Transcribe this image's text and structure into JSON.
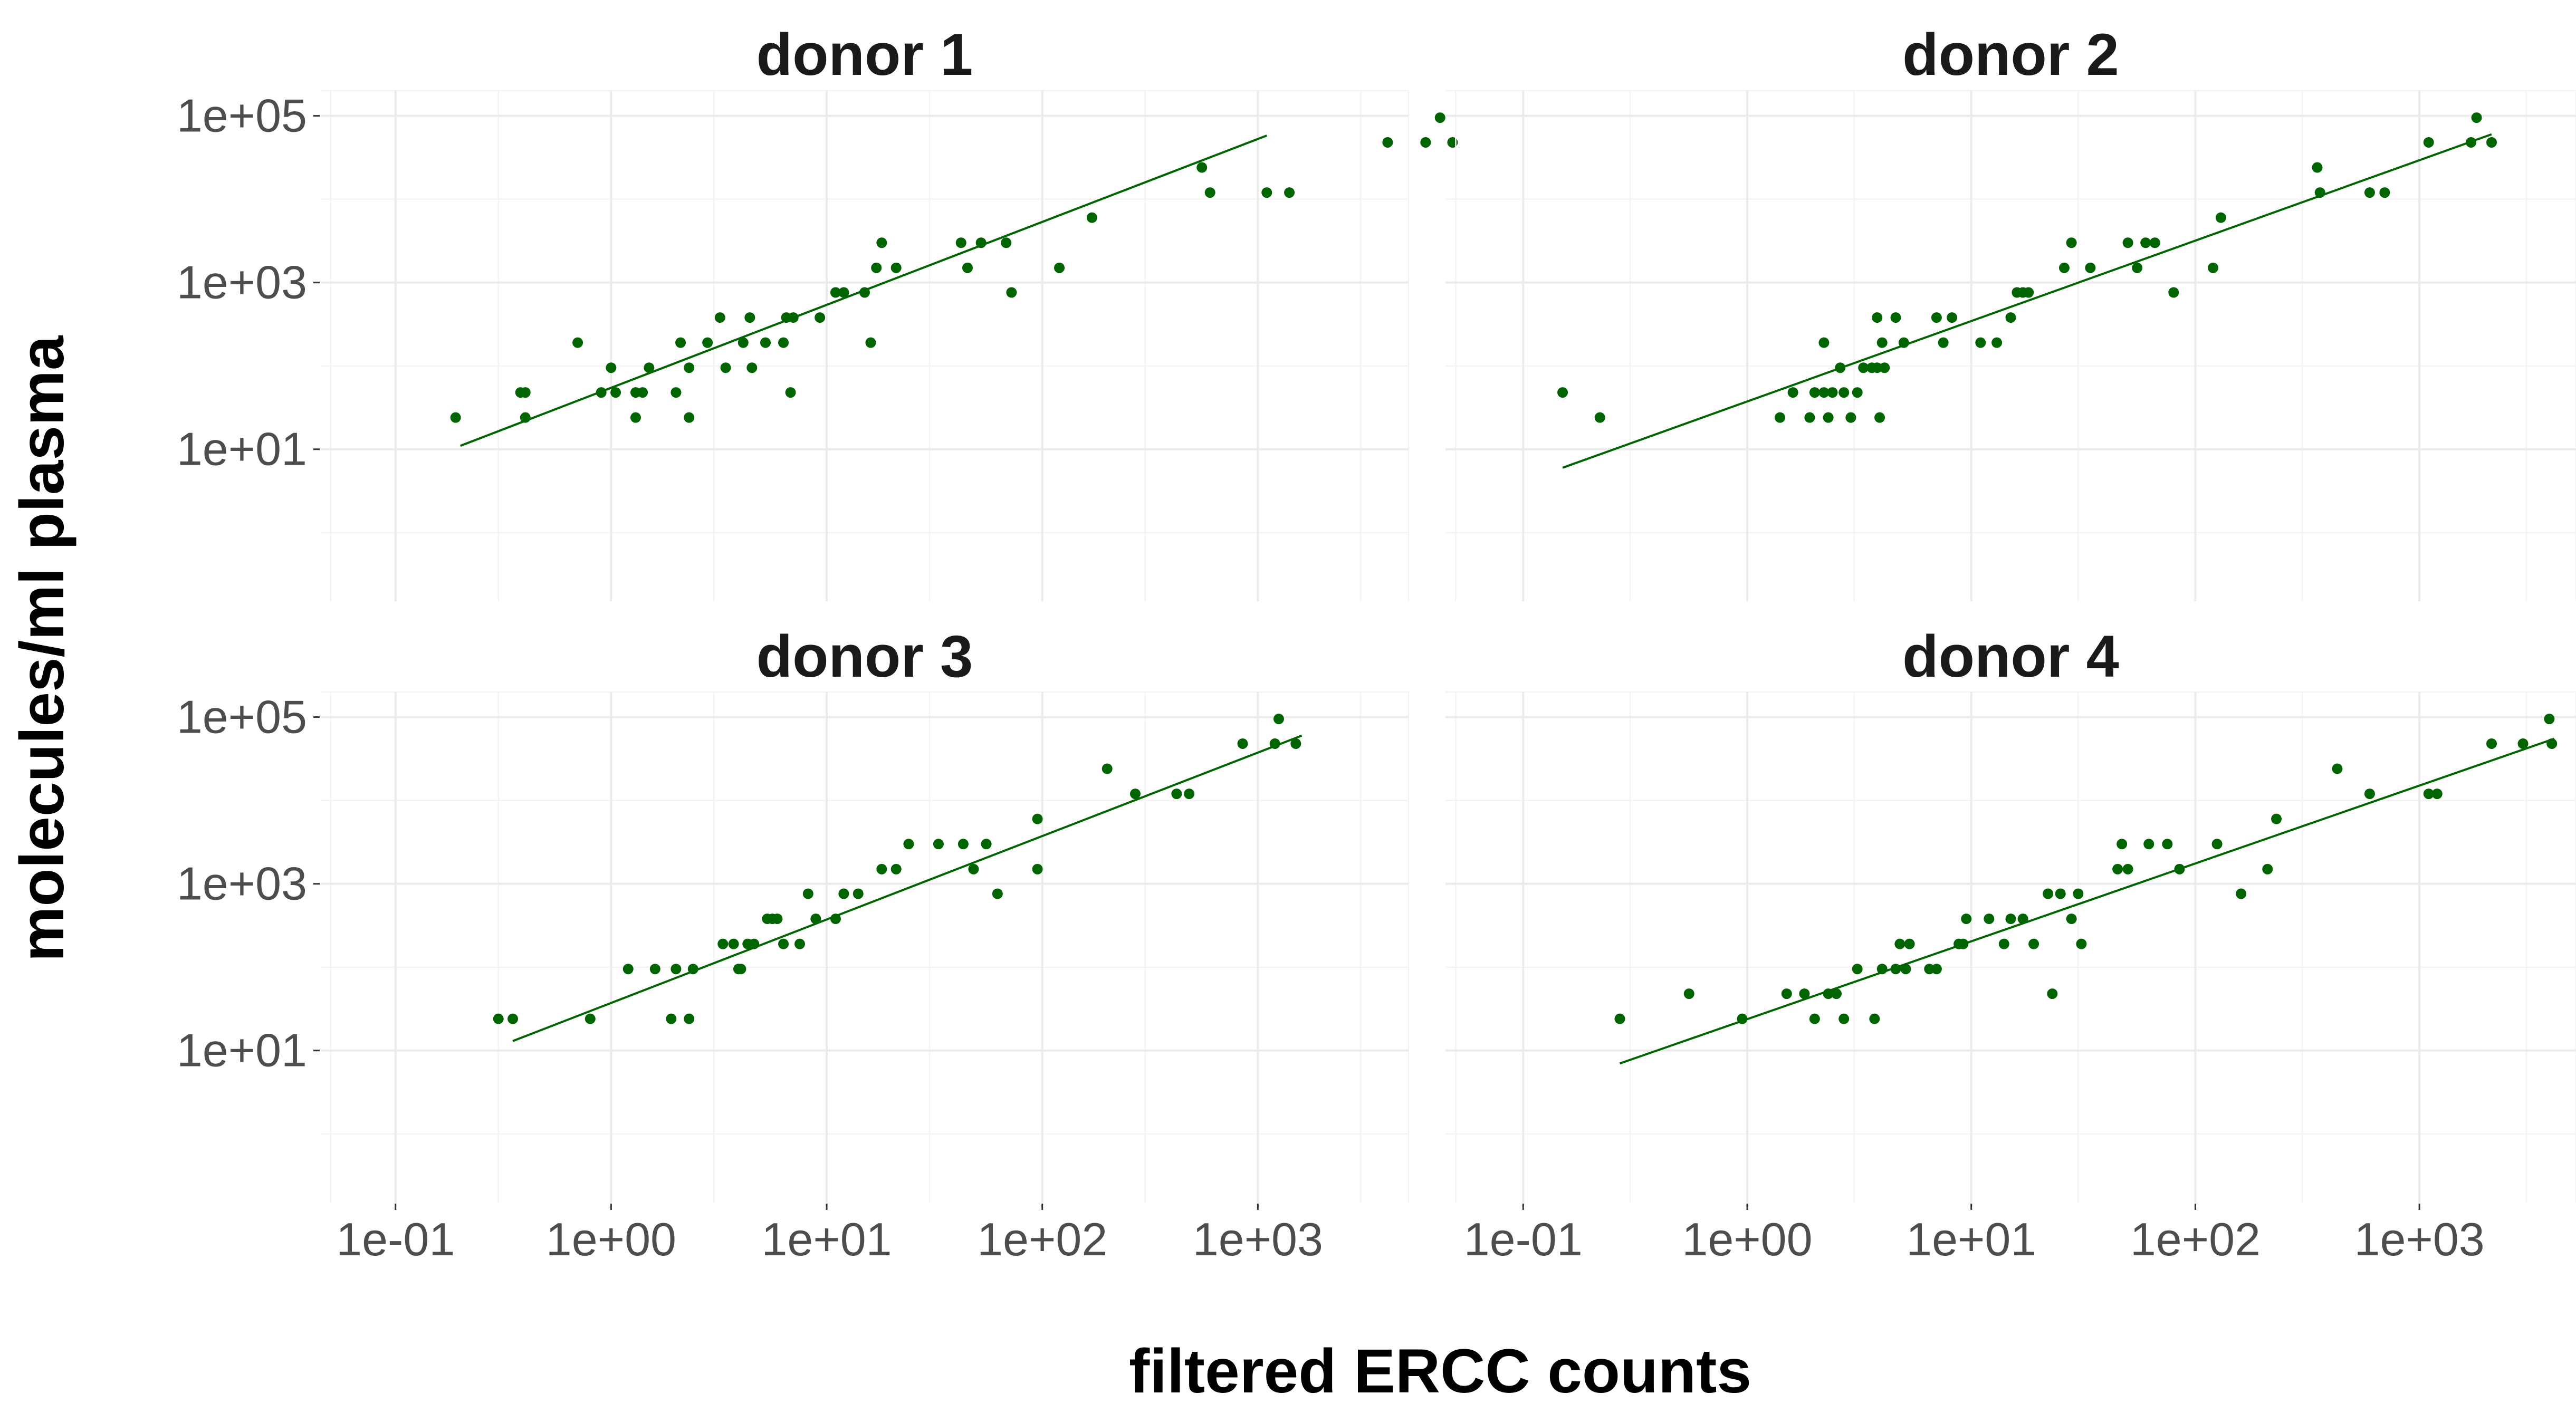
{
  "chart_data": {
    "type": "scatter",
    "xlabel": "filtered ERCC counts",
    "ylabel": "molecules/ml plasma",
    "x_scale": "log10",
    "y_scale": "log10",
    "xlim": [
      0.045,
      5000
    ],
    "ylim": [
      0.15,
      200000
    ],
    "x_ticks": [
      0.1,
      1,
      10,
      100,
      1000
    ],
    "x_tick_labels": [
      "1e-01",
      "1e+00",
      "1e+01",
      "1e+02",
      "1e+03"
    ],
    "y_ticks": [
      10,
      1000,
      100000
    ],
    "y_tick_labels": [
      "1e+01",
      "1e+03",
      "1e+05"
    ],
    "grid": true,
    "point_color": "#006400",
    "line_color": "#006400",
    "panels": [
      {
        "title": "donor 1",
        "fit_line": [
          [
            0.2,
            11
          ],
          [
            1100,
            58000
          ]
        ],
        "points": [
          [
            0.19,
            24
          ],
          [
            0.38,
            48
          ],
          [
            0.4,
            48
          ],
          [
            0.4,
            24
          ],
          [
            0.7,
            190
          ],
          [
            0.9,
            48
          ],
          [
            1.0,
            95
          ],
          [
            1.05,
            48
          ],
          [
            1.3,
            24
          ],
          [
            1.3,
            48
          ],
          [
            1.4,
            48
          ],
          [
            1.5,
            95
          ],
          [
            2.0,
            48
          ],
          [
            2.1,
            190
          ],
          [
            2.3,
            95
          ],
          [
            2.3,
            24
          ],
          [
            2.8,
            190
          ],
          [
            3.2,
            380
          ],
          [
            3.4,
            95
          ],
          [
            4.1,
            190
          ],
          [
            4.4,
            380
          ],
          [
            4.5,
            95
          ],
          [
            5.2,
            190
          ],
          [
            6.3,
            190
          ],
          [
            6.5,
            380
          ],
          [
            6.8,
            48
          ],
          [
            7.0,
            380
          ],
          [
            9.3,
            380
          ],
          [
            11,
            760
          ],
          [
            12,
            760
          ],
          [
            15,
            760
          ],
          [
            16,
            190
          ],
          [
            17,
            1500
          ],
          [
            18,
            3000
          ],
          [
            21,
            1500
          ],
          [
            42,
            3000
          ],
          [
            45,
            1500
          ],
          [
            52,
            3000
          ],
          [
            68,
            3000
          ],
          [
            72,
            760
          ],
          [
            120,
            1500
          ],
          [
            170,
            6000
          ],
          [
            550,
            24000
          ],
          [
            600,
            12000
          ],
          [
            1100,
            12000
          ],
          [
            1400,
            12000
          ],
          [
            4000,
            48000
          ],
          [
            6000,
            48000
          ],
          [
            7000,
            95000
          ],
          [
            8000,
            48000
          ]
        ]
      },
      {
        "title": "donor 2",
        "fit_line": [
          [
            0.15,
            6
          ],
          [
            2100,
            60000
          ]
        ],
        "points": [
          [
            0.15,
            48
          ],
          [
            0.22,
            24
          ],
          [
            1.4,
            24
          ],
          [
            1.6,
            48
          ],
          [
            1.9,
            24
          ],
          [
            2.0,
            48
          ],
          [
            2.2,
            48
          ],
          [
            2.2,
            190
          ],
          [
            2.3,
            24
          ],
          [
            2.4,
            48
          ],
          [
            2.6,
            95
          ],
          [
            2.7,
            48
          ],
          [
            2.9,
            24
          ],
          [
            3.1,
            48
          ],
          [
            3.3,
            95
          ],
          [
            3.6,
            95
          ],
          [
            3.8,
            95
          ],
          [
            3.8,
            380
          ],
          [
            3.9,
            24
          ],
          [
            4.0,
            190
          ],
          [
            4.1,
            95
          ],
          [
            4.6,
            380
          ],
          [
            5.0,
            190
          ],
          [
            7.0,
            380
          ],
          [
            7.5,
            190
          ],
          [
            8.2,
            380
          ],
          [
            11,
            190
          ],
          [
            13,
            190
          ],
          [
            15,
            380
          ],
          [
            16,
            760
          ],
          [
            17,
            760
          ],
          [
            18,
            760
          ],
          [
            26,
            1500
          ],
          [
            28,
            3000
          ],
          [
            34,
            1500
          ],
          [
            50,
            3000
          ],
          [
            55,
            1500
          ],
          [
            60,
            3000
          ],
          [
            66,
            3000
          ],
          [
            80,
            760
          ],
          [
            120,
            1500
          ],
          [
            130,
            6000
          ],
          [
            350,
            24000
          ],
          [
            360,
            12000
          ],
          [
            600,
            12000
          ],
          [
            700,
            12000
          ],
          [
            1100,
            48000
          ],
          [
            1700,
            48000
          ],
          [
            1800,
            95000
          ],
          [
            2100,
            48000
          ]
        ]
      },
      {
        "title": "donor 3",
        "fit_line": [
          [
            0.35,
            13
          ],
          [
            1600,
            60000
          ]
        ],
        "points": [
          [
            0.3,
            24
          ],
          [
            0.35,
            24
          ],
          [
            0.8,
            24
          ],
          [
            1.2,
            95
          ],
          [
            1.6,
            95
          ],
          [
            1.9,
            24
          ],
          [
            2.0,
            95
          ],
          [
            2.3,
            24
          ],
          [
            2.4,
            95
          ],
          [
            3.3,
            190
          ],
          [
            3.7,
            190
          ],
          [
            3.9,
            95
          ],
          [
            4.0,
            95
          ],
          [
            4.3,
            190
          ],
          [
            4.6,
            190
          ],
          [
            5.3,
            380
          ],
          [
            5.6,
            380
          ],
          [
            5.9,
            380
          ],
          [
            6.3,
            190
          ],
          [
            7.5,
            190
          ],
          [
            8.2,
            760
          ],
          [
            8.9,
            380
          ],
          [
            11,
            380
          ],
          [
            12,
            760
          ],
          [
            14,
            760
          ],
          [
            18,
            1500
          ],
          [
            21,
            1500
          ],
          [
            24,
            3000
          ],
          [
            33,
            3000
          ],
          [
            43,
            3000
          ],
          [
            48,
            1500
          ],
          [
            55,
            3000
          ],
          [
            62,
            760
          ],
          [
            95,
            6000
          ],
          [
            95,
            1500
          ],
          [
            200,
            24000
          ],
          [
            270,
            12000
          ],
          [
            420,
            12000
          ],
          [
            480,
            12000
          ],
          [
            850,
            48000
          ],
          [
            1200,
            48000
          ],
          [
            1250,
            95000
          ],
          [
            1500,
            48000
          ]
        ]
      },
      {
        "title": "donor 4",
        "fit_line": [
          [
            0.27,
            7
          ],
          [
            4000,
            55000
          ]
        ],
        "points": [
          [
            0.27,
            24
          ],
          [
            0.55,
            48
          ],
          [
            0.95,
            24
          ],
          [
            1.5,
            48
          ],
          [
            1.8,
            48
          ],
          [
            2.0,
            24
          ],
          [
            2.3,
            48
          ],
          [
            2.5,
            48
          ],
          [
            2.7,
            24
          ],
          [
            3.1,
            95
          ],
          [
            3.7,
            24
          ],
          [
            4.0,
            95
          ],
          [
            4.6,
            95
          ],
          [
            4.8,
            190
          ],
          [
            5.1,
            95
          ],
          [
            5.3,
            190
          ],
          [
            6.5,
            95
          ],
          [
            7.0,
            95
          ],
          [
            8.8,
            190
          ],
          [
            9.2,
            190
          ],
          [
            9.5,
            380
          ],
          [
            12,
            380
          ],
          [
            14,
            190
          ],
          [
            15,
            380
          ],
          [
            17,
            380
          ],
          [
            19,
            190
          ],
          [
            22,
            760
          ],
          [
            23,
            48
          ],
          [
            25,
            760
          ],
          [
            28,
            380
          ],
          [
            30,
            760
          ],
          [
            31,
            190
          ],
          [
            45,
            1500
          ],
          [
            47,
            3000
          ],
          [
            50,
            1500
          ],
          [
            62,
            3000
          ],
          [
            75,
            3000
          ],
          [
            85,
            1500
          ],
          [
            125,
            3000
          ],
          [
            160,
            760
          ],
          [
            210,
            1500
          ],
          [
            230,
            6000
          ],
          [
            430,
            24000
          ],
          [
            600,
            12000
          ],
          [
            1100,
            12000
          ],
          [
            1200,
            12000
          ],
          [
            2100,
            48000
          ],
          [
            2900,
            48000
          ],
          [
            3800,
            95000
          ],
          [
            3900,
            48000
          ]
        ]
      }
    ]
  }
}
